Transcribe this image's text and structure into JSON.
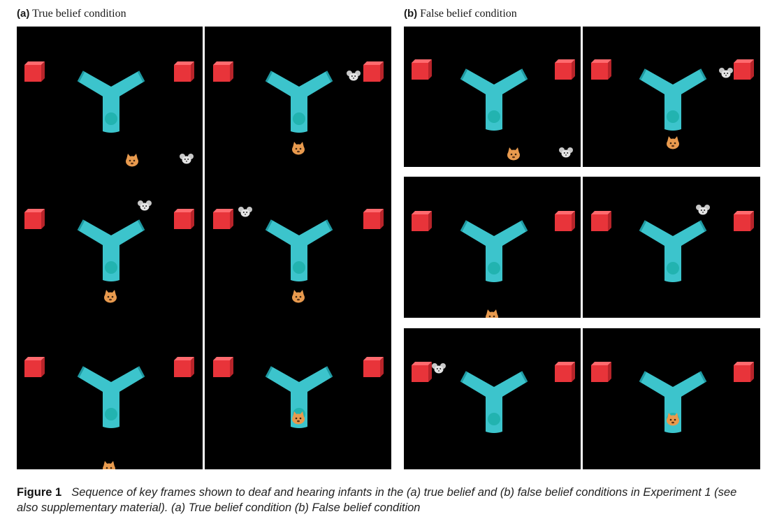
{
  "panels": {
    "a": {
      "letter": "(a)",
      "title": "True belief condition"
    },
    "b": {
      "letter": "(b)",
      "title": "False belief condition"
    }
  },
  "caption": {
    "label": "Figure 1",
    "text": "Sequence of key frames shown to deaf and hearing infants in the (a) true belief and (b) false belief conditions in Experiment 1 (see also supplementary material). (a) True belief condition (b) False belief condition"
  },
  "colors": {
    "background": "#000000",
    "tube": "#3cc4cc",
    "box": "#e8343a",
    "cat": "#e89a4e",
    "mouse": "#c8c8c8"
  },
  "icons": {
    "tube": "y-shaped-tube-icon",
    "box": "red-box-icon",
    "cat": "cat-icon",
    "mouse": "mouse-icon"
  }
}
